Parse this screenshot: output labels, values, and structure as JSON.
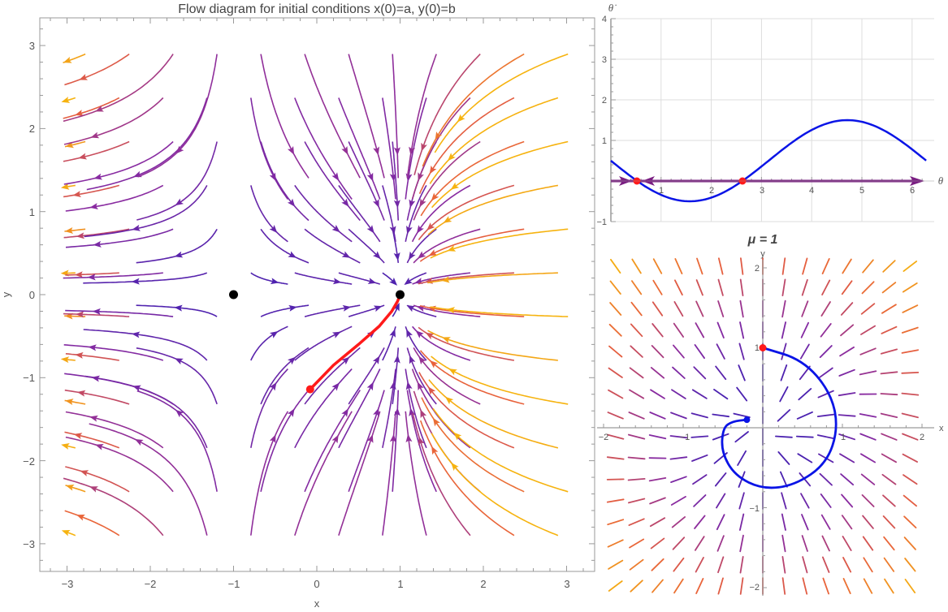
{
  "main_plot": {
    "title": "Flow diagram for initial conditions x(0)=a, y(0)=b",
    "xlabel": "x",
    "ylabel": "y",
    "x_ticks": [
      "−3",
      "−2",
      "−1",
      "0",
      "1",
      "2",
      "3"
    ],
    "y_ticks": [
      "3",
      "2",
      "1",
      "0",
      "−1",
      "−2",
      "−3"
    ]
  },
  "phase_line_plot": {
    "ylabel": "θ̇",
    "xlabel": "θ",
    "x_ticks": [
      "1",
      "2",
      "3",
      "4",
      "5",
      "6"
    ],
    "y_ticks": [
      "4",
      "3",
      "2",
      "1",
      "−1"
    ]
  },
  "direction_field_plot": {
    "title": "μ = 1",
    "xlabel": "x",
    "ylabel": "y",
    "x_ticks": [
      "−2",
      "−1",
      "1",
      "2"
    ],
    "y_ticks": [
      "2",
      "1",
      "−1",
      "−2"
    ]
  },
  "colors": {
    "slow": "#4b22b0",
    "mid": "#8a2ba0",
    "fast": "#e8603c",
    "fastest": "#f6b30f",
    "curve": "#0a14e6",
    "marker_red": "#ff1a1a",
    "fixed_point": "#000000",
    "phase_axis": "#7a1e82",
    "grid": "#dddddd",
    "frame": "#999999"
  },
  "chart_data": [
    {
      "type": "streamplot",
      "title": "Flow diagram for initial conditions x(0)=a, y(0)=b",
      "xlabel": "x",
      "ylabel": "y",
      "xlim": [
        -3.3,
        3.3
      ],
      "ylim": [
        -3.3,
        3.3
      ],
      "x_ticks": [
        -3,
        -2,
        -1,
        0,
        1,
        2,
        3
      ],
      "y_ticks": [
        -3,
        -2,
        -1,
        0,
        1,
        2,
        3
      ],
      "fixed_points": [
        {
          "x": -1,
          "y": 0,
          "type": "saddle"
        },
        {
          "x": 1,
          "y": 0,
          "type": "stable node"
        }
      ],
      "trajectory": {
        "color": "red",
        "points": [
          [
            -0.08,
            -1.14
          ],
          [
            0.2,
            -0.85
          ],
          [
            0.5,
            -0.6
          ],
          [
            0.75,
            -0.38
          ],
          [
            0.9,
            -0.2
          ],
          [
            0.97,
            -0.08
          ],
          [
            1.0,
            0.0
          ]
        ]
      },
      "color_scale": "speed: purple (slow) → orange/yellow (fast)"
    },
    {
      "type": "line",
      "xlabel": "θ",
      "ylabel": "θ̇",
      "xlim": [
        0,
        6.3
      ],
      "ylim": [
        -1,
        4
      ],
      "x_ticks": [
        1,
        2,
        3,
        4,
        5,
        6
      ],
      "y_ticks": [
        -1,
        1,
        2,
        3,
        4
      ],
      "grid": true,
      "series": [
        {
          "name": "θ̇(θ)",
          "x": [
            0,
            0.52,
            1.0,
            1.57,
            2.0,
            2.62,
            3.14,
            3.5,
            4.0,
            4.71,
            5.2,
            5.5,
            6.0,
            6.28
          ],
          "y": [
            0.5,
            0.0,
            -0.34,
            -0.5,
            -0.41,
            0.0,
            0.5,
            0.85,
            1.26,
            1.5,
            1.38,
            1.21,
            0.78,
            0.5
          ]
        }
      ],
      "fixed_points": [
        {
          "theta": 0.52,
          "stability": "stable"
        },
        {
          "theta": 2.62,
          "stability": "unstable"
        }
      ],
      "annotations": [
        "flow arrows on θ axis pointing toward θ≈0.52"
      ]
    },
    {
      "type": "direction_field",
      "title": "μ = 1",
      "xlabel": "x",
      "ylabel": "y",
      "xlim": [
        -2,
        2
      ],
      "ylim": [
        -2.1,
        2.1
      ],
      "x_ticks": [
        -2,
        -1,
        1,
        2
      ],
      "y_ticks": [
        -2,
        -1,
        1,
        2
      ],
      "trajectory": {
        "start": [
          0,
          1
        ],
        "end": [
          -0.2,
          0.1
        ],
        "points": [
          [
            0,
            1
          ],
          [
            0.5,
            0.85
          ],
          [
            0.85,
            0.45
          ],
          [
            0.95,
            0
          ],
          [
            0.8,
            -0.45
          ],
          [
            0.4,
            -0.72
          ],
          [
            0,
            -0.77
          ],
          [
            -0.35,
            -0.6
          ],
          [
            -0.52,
            -0.3
          ],
          [
            -0.5,
            0
          ],
          [
            -0.38,
            0.08
          ],
          [
            -0.2,
            0.1
          ]
        ]
      }
    }
  ]
}
